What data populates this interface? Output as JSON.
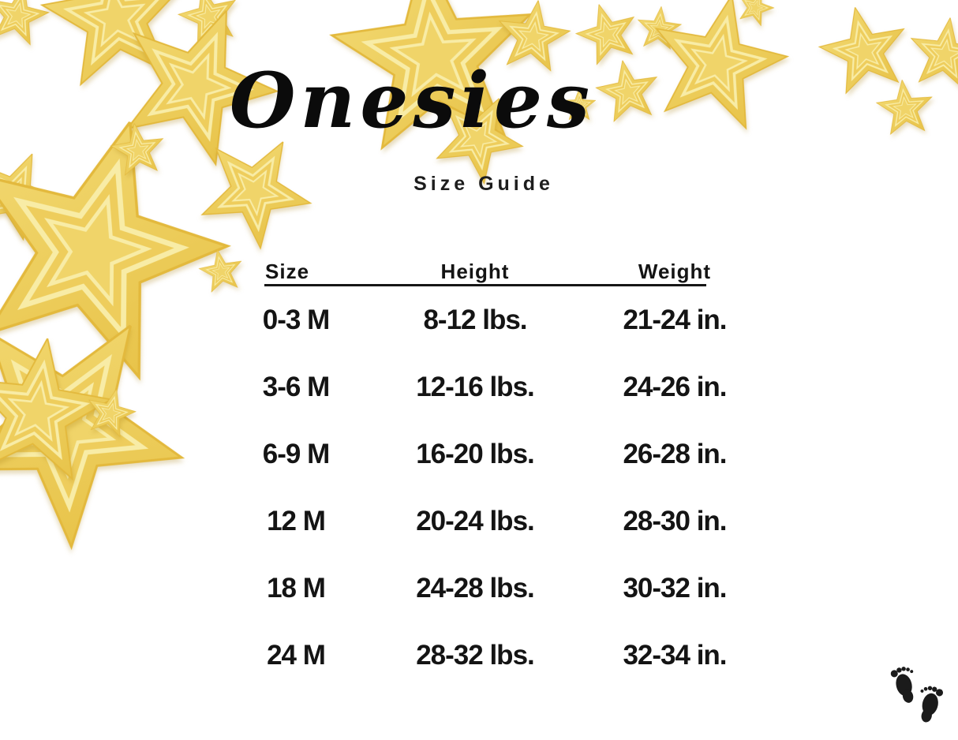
{
  "header": {
    "title": "Onesies",
    "subtitle": "Size Guide"
  },
  "size_table": {
    "columns": [
      "Size",
      "Height",
      "Weight"
    ],
    "rows": [
      [
        "0-3 M",
        "8-12 lbs.",
        "21-24 in."
      ],
      [
        "3-6 M",
        "12-16 lbs.",
        "24-26 in."
      ],
      [
        "6-9 M",
        "16-20 lbs.",
        "26-28 in."
      ],
      [
        "12 M",
        "20-24 lbs.",
        "28-30 in."
      ],
      [
        "18 M",
        "24-28 lbs.",
        "30-32 in."
      ],
      [
        "24 M",
        "28-32 lbs.",
        "32-34 in."
      ]
    ]
  },
  "decor": {
    "star_icon": "gold-glitter-star",
    "footprints_icon": "baby-footprints",
    "colors": {
      "star_gold": "#edca52",
      "star_light": "#f2d86e",
      "star_highlight": "#f8eca6",
      "star_shadow": "#e3b93d",
      "text": "#141414",
      "background": "#ffffff",
      "footprints": "#1b1b1b"
    }
  }
}
